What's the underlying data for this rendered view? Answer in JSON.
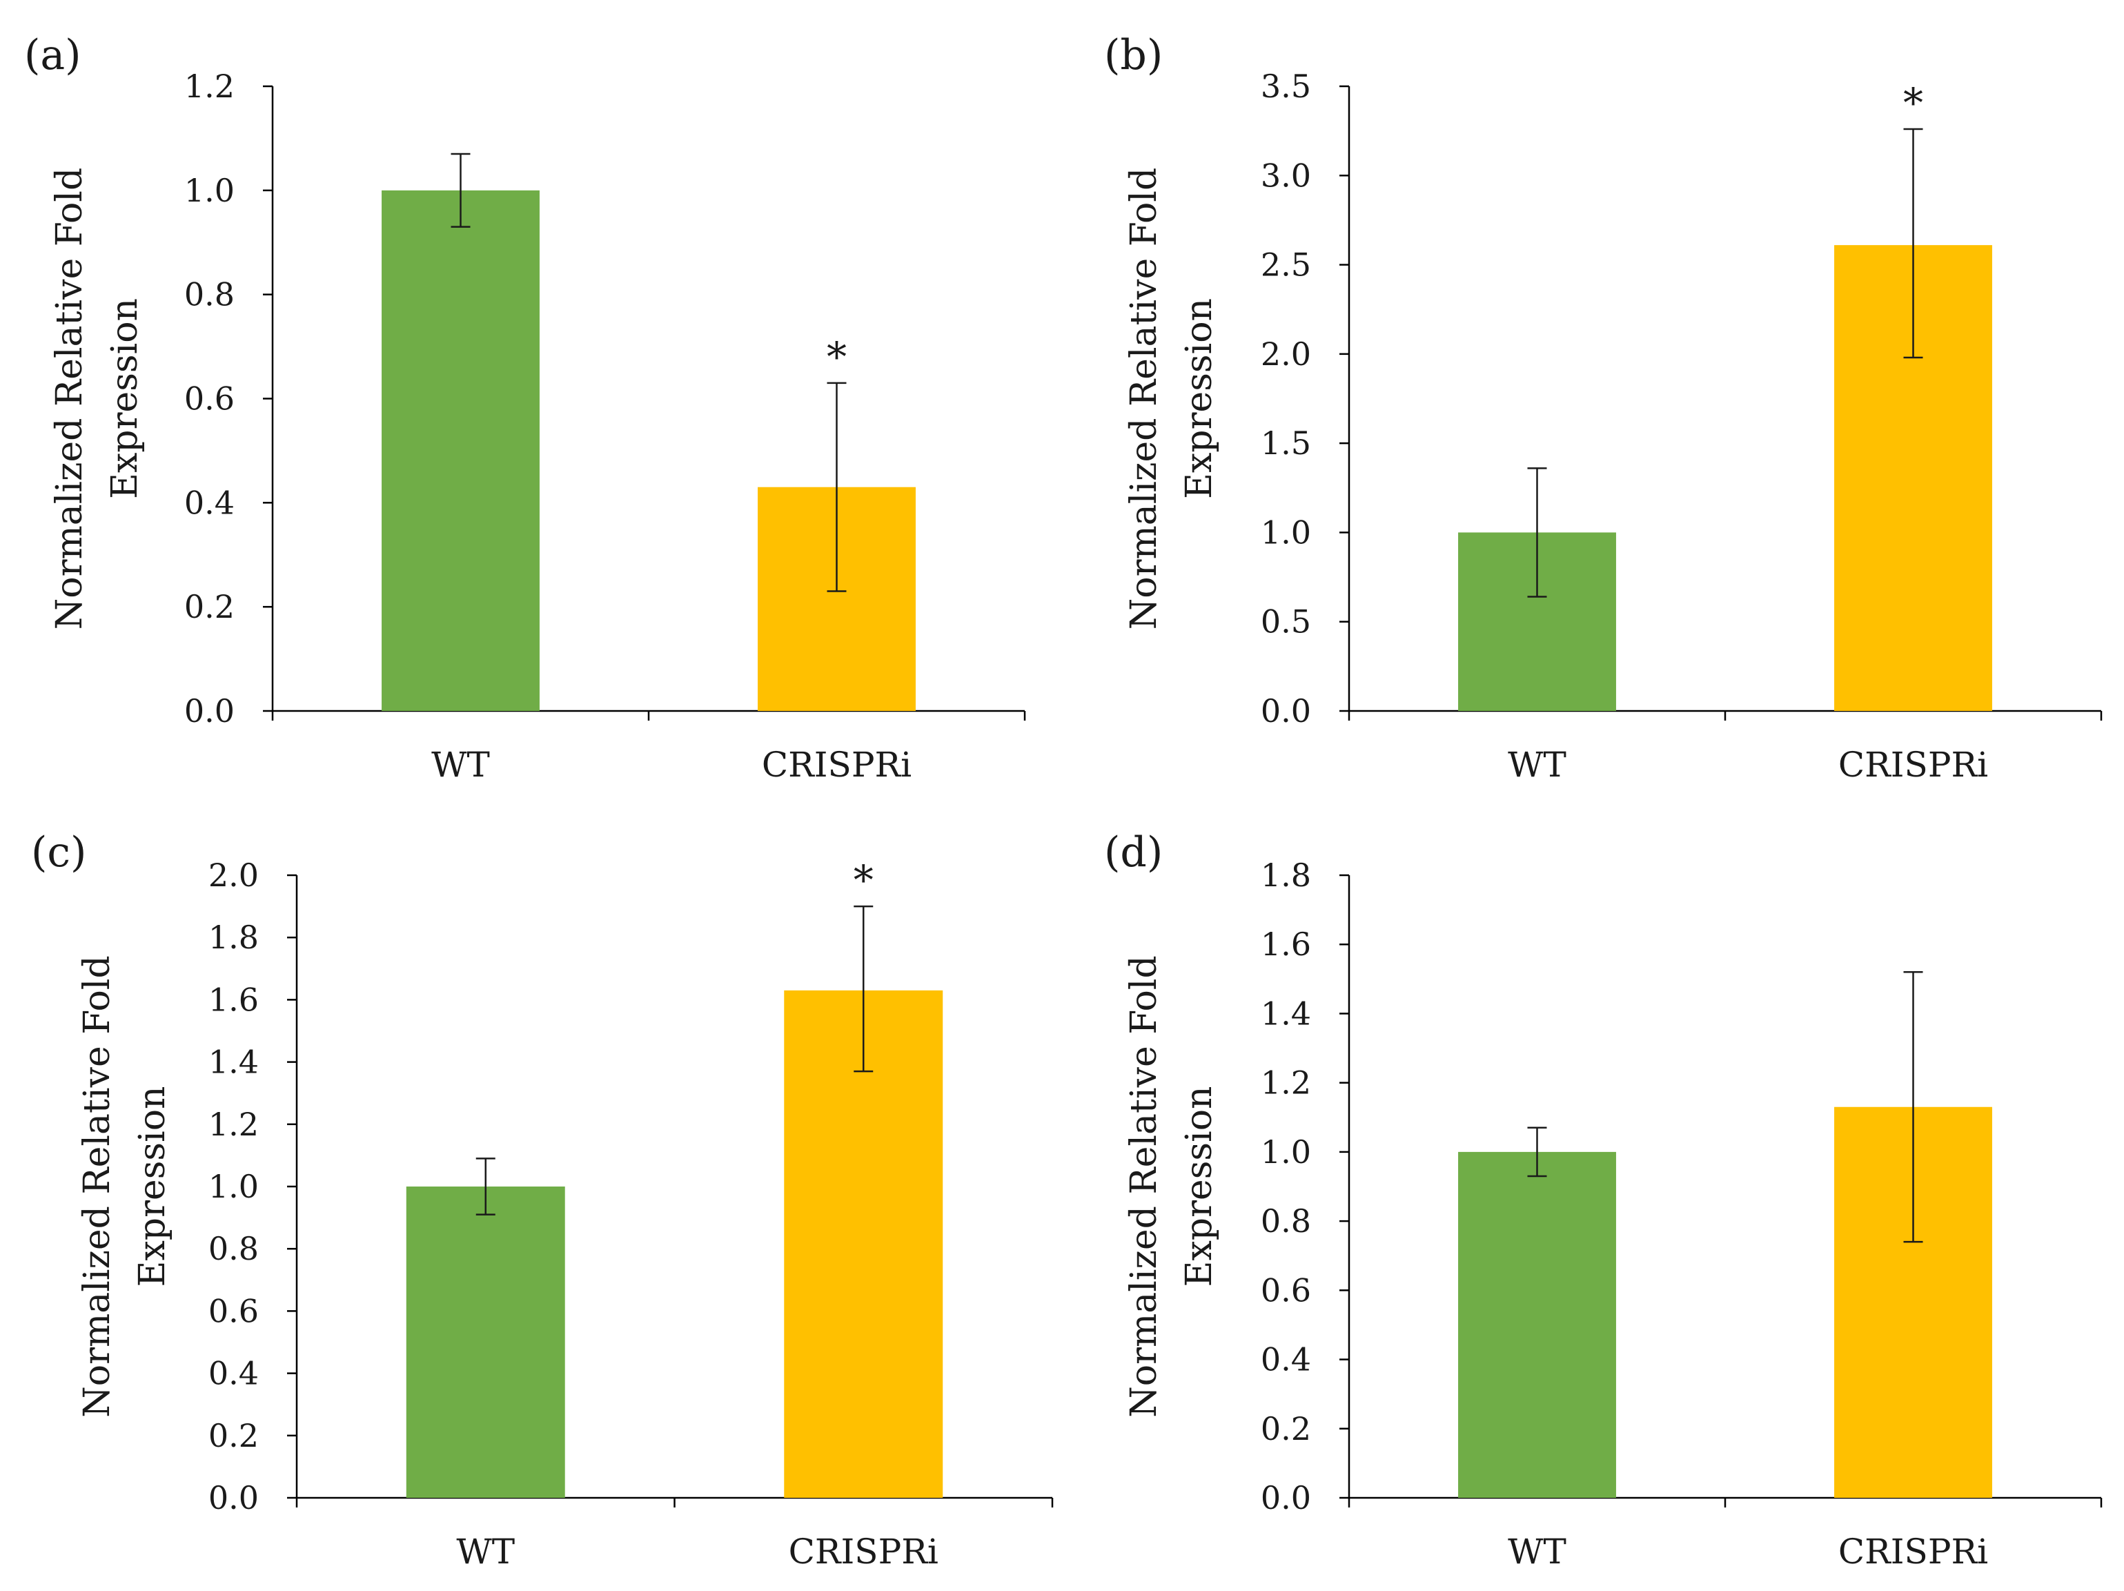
{
  "chart_data": [
    {
      "type": "bar",
      "panel_label": "(a)",
      "ylabel_lines": [
        "Normalized Relative Fold",
        "Expression"
      ],
      "categories": [
        "WT",
        "CRISPRi"
      ],
      "values": [
        1.0,
        0.43
      ],
      "error_low": [
        0.93,
        0.23
      ],
      "error_high": [
        1.07,
        0.63
      ],
      "significance": [
        "",
        "*"
      ],
      "colors": [
        "#70AD47",
        "#FFC000"
      ],
      "ylim": [
        0,
        1.2
      ],
      "yticks": [
        0,
        0.2,
        0.4,
        0.6,
        0.8,
        1.0,
        1.2
      ],
      "ytick_labels": [
        "0.0",
        "0.2",
        "0.4",
        "0.6",
        "0.8",
        "1.0",
        "1.2"
      ]
    },
    {
      "type": "bar",
      "panel_label": "(b)",
      "ylabel_lines": [
        "Normalized Relative Fold",
        "Expression"
      ],
      "categories": [
        "WT",
        "CRISPRi"
      ],
      "values": [
        1.0,
        2.61
      ],
      "error_low": [
        0.64,
        1.98
      ],
      "error_high": [
        1.36,
        3.26
      ],
      "significance": [
        "",
        "*"
      ],
      "colors": [
        "#70AD47",
        "#FFC000"
      ],
      "ylim": [
        0,
        3.5
      ],
      "yticks": [
        0,
        0.5,
        1.0,
        1.5,
        2.0,
        2.5,
        3.0,
        3.5
      ],
      "ytick_labels": [
        "0.0",
        "0.5",
        "1.0",
        "1.5",
        "2.0",
        "2.5",
        "3.0",
        "3.5"
      ]
    },
    {
      "type": "bar",
      "panel_label": "(c)",
      "ylabel_lines": [
        "Normalized Relative Fold",
        "Expression"
      ],
      "categories": [
        "WT",
        "CRISPRi"
      ],
      "values": [
        1.0,
        1.63
      ],
      "error_low": [
        0.91,
        1.37
      ],
      "error_high": [
        1.09,
        1.9
      ],
      "significance": [
        "",
        "*"
      ],
      "colors": [
        "#70AD47",
        "#FFC000"
      ],
      "ylim": [
        0,
        2.0
      ],
      "yticks": [
        0,
        0.2,
        0.4,
        0.6,
        0.8,
        1.0,
        1.2,
        1.4,
        1.6,
        1.8,
        2.0
      ],
      "ytick_labels": [
        "0.0",
        "0.2",
        "0.4",
        "0.6",
        "0.8",
        "1.0",
        "1.2",
        "1.4",
        "1.6",
        "1.8",
        "2.0"
      ]
    },
    {
      "type": "bar",
      "panel_label": "(d)",
      "ylabel_lines": [
        "Normalized Relative Fold",
        "Expression"
      ],
      "categories": [
        "WT",
        "CRISPRi"
      ],
      "values": [
        1.0,
        1.13
      ],
      "error_low": [
        0.93,
        0.74
      ],
      "error_high": [
        1.07,
        1.52
      ],
      "significance": [
        "",
        ""
      ],
      "colors": [
        "#70AD47",
        "#FFC000"
      ],
      "ylim": [
        0,
        1.8
      ],
      "yticks": [
        0,
        0.2,
        0.4,
        0.6,
        0.8,
        1.0,
        1.2,
        1.4,
        1.6,
        1.8
      ],
      "ytick_labels": [
        "0.0",
        "0.2",
        "0.4",
        "0.6",
        "0.8",
        "1.0",
        "1.2",
        "1.4",
        "1.6",
        "1.8"
      ]
    }
  ]
}
